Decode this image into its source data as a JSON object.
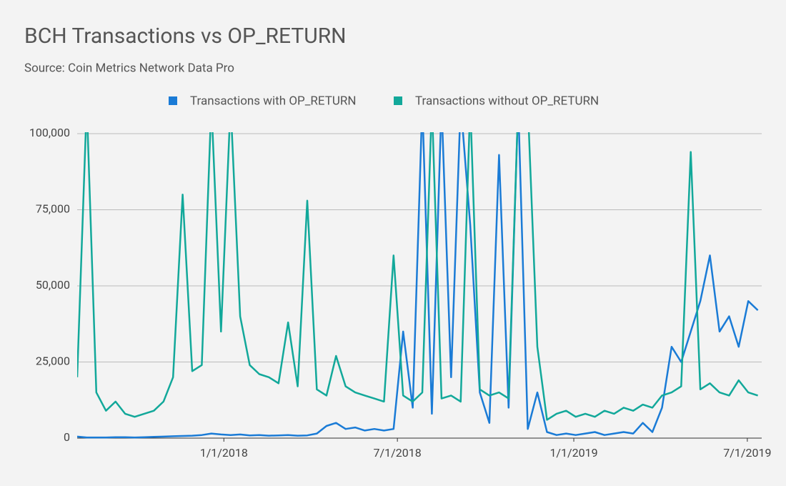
{
  "chart_data": {
    "type": "line",
    "title": "BCH Transactions vs OP_RETURN",
    "subtitle": "Source: Coin Metrics Network Data Pro",
    "x": [
      "8/1/2017",
      "8/11/2017",
      "8/21/2017",
      "8/31/2017",
      "9/10/2017",
      "9/20/2017",
      "9/30/2017",
      "10/10/2017",
      "10/20/2017",
      "10/30/2017",
      "11/9/2017",
      "11/19/2017",
      "11/29/2017",
      "12/9/2017",
      "12/19/2017",
      "12/29/2017",
      "1/8/2018",
      "1/18/2018",
      "1/28/2018",
      "2/7/2018",
      "2/17/2018",
      "2/27/2018",
      "3/9/2018",
      "3/19/2018",
      "3/29/2018",
      "4/8/2018",
      "4/18/2018",
      "4/28/2018",
      "5/8/2018",
      "5/18/2018",
      "5/28/2018",
      "6/7/2018",
      "6/17/2018",
      "6/27/2018",
      "7/7/2018",
      "7/17/2018",
      "7/27/2018",
      "8/6/2018",
      "8/16/2018",
      "8/26/2018",
      "9/5/2018",
      "9/15/2018",
      "9/25/2018",
      "10/5/2018",
      "10/15/2018",
      "10/25/2018",
      "11/4/2018",
      "11/14/2018",
      "11/24/2018",
      "12/4/2018",
      "12/14/2018",
      "12/24/2018",
      "1/3/2019",
      "1/13/2019",
      "1/23/2019",
      "2/2/2019",
      "2/12/2019",
      "2/22/2019",
      "3/4/2019",
      "3/14/2019",
      "3/24/2019",
      "4/3/2019",
      "4/13/2019",
      "4/23/2019",
      "5/3/2019",
      "5/13/2019",
      "5/23/2019",
      "6/2/2019",
      "6/12/2019",
      "6/22/2019",
      "7/2/2019",
      "7/12/2019"
    ],
    "xlim": [
      "8/1/2017",
      "7/16/2019"
    ],
    "xticks": [
      "1/1/2018",
      "7/1/2018",
      "1/1/2019",
      "7/1/2019"
    ],
    "ylim": [
      0,
      100000
    ],
    "yticks": [
      0,
      {
        "value": 25000,
        "label": "25,000"
      },
      {
        "value": 50000,
        "label": "50,000"
      },
      {
        "value": 75000,
        "label": "75,000"
      },
      {
        "value": 100000,
        "label": "100,000"
      }
    ],
    "grid": true,
    "legend": "top",
    "series": [
      {
        "name": "Transactions with OP_RETURN",
        "color": "#1a7bd6",
        "values": [
          500,
          200,
          200,
          200,
          300,
          300,
          200,
          300,
          400,
          500,
          600,
          700,
          800,
          1000,
          1500,
          1200,
          1000,
          1200,
          900,
          1000,
          800,
          900,
          1000,
          800,
          900,
          1500,
          4000,
          5000,
          3000,
          3500,
          2500,
          3000,
          2500,
          3000,
          35000,
          10000,
          110000,
          8000,
          110000,
          20000,
          110000,
          70000,
          15000,
          5000,
          93000,
          10000,
          110000,
          3000,
          15000,
          2000,
          1000,
          1500,
          1000,
          1500,
          2000,
          1000,
          1500,
          2000,
          1500,
          5000,
          2000,
          10000,
          30000,
          25000,
          35000,
          45000,
          60000,
          35000,
          40000,
          30000,
          45000,
          42000
        ]
      },
      {
        "name": "Transactions without OP_RETURN",
        "color": "#12a89a",
        "values": [
          20000,
          110000,
          15000,
          9000,
          12000,
          8000,
          7000,
          8000,
          9000,
          12000,
          20000,
          80000,
          22000,
          24000,
          110000,
          35000,
          110000,
          40000,
          24000,
          21000,
          20000,
          18000,
          38000,
          17000,
          78000,
          16000,
          14000,
          27000,
          17000,
          15000,
          14000,
          13000,
          12000,
          60000,
          14000,
          12000,
          15000,
          110000,
          13000,
          14000,
          12000,
          110000,
          16000,
          14000,
          15000,
          13000,
          110000,
          110000,
          30000,
          6000,
          8000,
          9000,
          7000,
          8000,
          7000,
          9000,
          8000,
          10000,
          9000,
          11000,
          10000,
          14000,
          15000,
          17000,
          94000,
          16000,
          18000,
          15000,
          14000,
          19000,
          15000,
          14000
        ]
      }
    ]
  }
}
